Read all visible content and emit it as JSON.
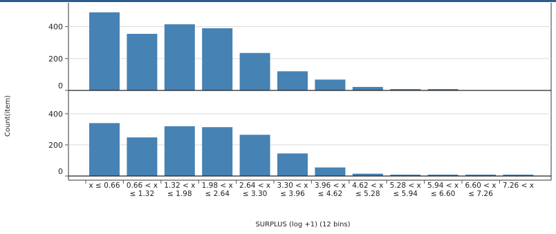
{
  "chart_data": {
    "type": "bar",
    "xlabel": "SURPLUS (log +1) (12 bins)",
    "ylabel": "Count(item)",
    "categories": [
      [
        "x ≤ 0.66"
      ],
      [
        "0.66 < x",
        "≤ 1.32"
      ],
      [
        "1.32 < x",
        "≤ 1.98"
      ],
      [
        "1.98 < x",
        "≤ 2.64"
      ],
      [
        "2.64 < x",
        "≤ 3.30"
      ],
      [
        "3.30 < x",
        "≤ 3.96"
      ],
      [
        "3.96 < x",
        "≤ 4.62"
      ],
      [
        "4.62 < x",
        "≤ 5.28"
      ],
      [
        "5.28 < x",
        "≤ 5.94"
      ],
      [
        "5.94 < x",
        "≤ 6.60"
      ],
      [
        "6.60 < x",
        "≤ 7.26"
      ],
      [
        "7.26 < x"
      ]
    ],
    "panels": [
      {
        "values": [
          490,
          355,
          415,
          390,
          235,
          120,
          68,
          22,
          6,
          4,
          0,
          0
        ],
        "ylim": [
          0,
          550
        ],
        "yticks": [
          0,
          200,
          400
        ]
      },
      {
        "values": [
          340,
          248,
          320,
          314,
          265,
          145,
          55,
          15,
          6,
          5,
          4,
          4
        ],
        "ylim": [
          0,
          550
        ],
        "yticks": [
          0,
          200,
          400
        ]
      }
    ],
    "bar_color": "#4682b4",
    "grid": true
  }
}
